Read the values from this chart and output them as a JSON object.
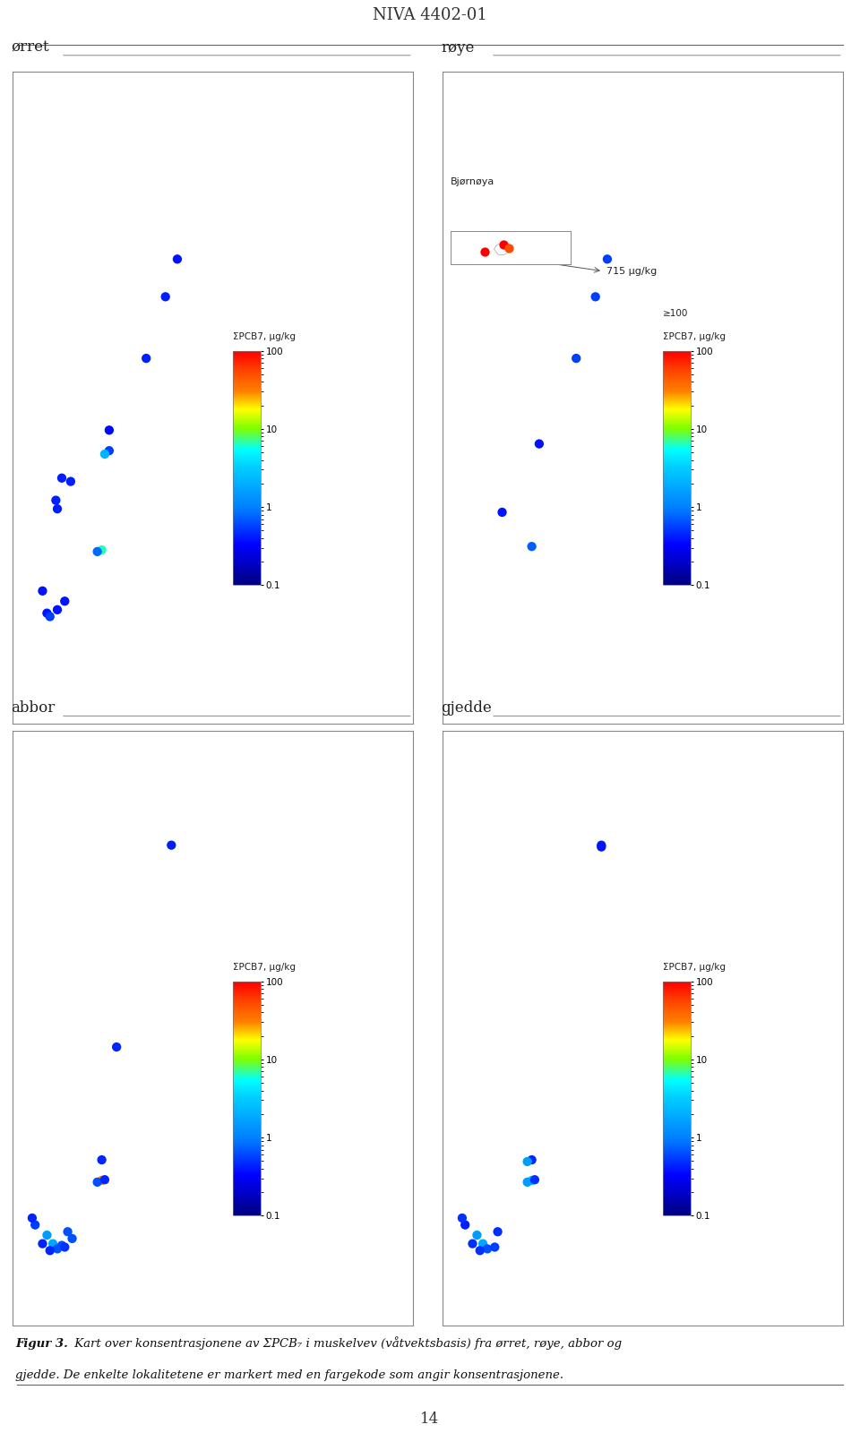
{
  "title": "NIVA 4402-01",
  "page_number": "14",
  "caption_bold": "Figur 3.",
  "caption_text": " Kart over konsentrasjonene av ΣPCB₇ i muskelvev (våtvektsbasis) fra ørret, røye, abbor og",
  "caption_text2": "gjedde. De enkelte lokalitetene er markert med en fargekode som angir konsentrasjonene.",
  "panels": [
    "ørret",
    "røye",
    "abbor",
    "gjedde"
  ],
  "colorbar_label": "ΣPCB7, µg/kg",
  "colorbar_label_roye": "ΣPCB7, µg/kg\n≥100",
  "roye_inset_label": "Bjørnøya",
  "roye_inset_value": "715 µg/kg",
  "norway_lon_range": [
    4.5,
    31.5
  ],
  "norway_lat_range": [
    57.5,
    71.2
  ],
  "bjornoya_lon": 19.0,
  "bjornoya_lat": 74.5,
  "orret_points": [
    {
      "lon": 15.6,
      "lat": 68.4,
      "val": 0.38
    },
    {
      "lon": 14.8,
      "lat": 67.3,
      "val": 0.42
    },
    {
      "lon": 13.5,
      "lat": 65.5,
      "val": 0.42
    },
    {
      "lon": 11.0,
      "lat": 63.4,
      "val": 0.35
    },
    {
      "lon": 11.0,
      "lat": 62.8,
      "val": 0.55
    },
    {
      "lon": 10.7,
      "lat": 62.7,
      "val": 2.2
    },
    {
      "lon": 7.8,
      "lat": 62.0,
      "val": 0.42
    },
    {
      "lon": 8.4,
      "lat": 61.9,
      "val": 0.42
    },
    {
      "lon": 7.4,
      "lat": 61.35,
      "val": 0.42
    },
    {
      "lon": 7.5,
      "lat": 61.1,
      "val": 0.42
    },
    {
      "lon": 6.5,
      "lat": 58.7,
      "val": 0.38
    },
    {
      "lon": 8.0,
      "lat": 58.4,
      "val": 0.38
    },
    {
      "lon": 7.5,
      "lat": 58.15,
      "val": 0.38
    },
    {
      "lon": 6.8,
      "lat": 58.05,
      "val": 0.38
    },
    {
      "lon": 7.0,
      "lat": 57.95,
      "val": 0.55
    },
    {
      "lon": 10.5,
      "lat": 59.9,
      "val": 6.5
    },
    {
      "lon": 10.2,
      "lat": 59.85,
      "val": 0.8
    }
  ],
  "roye_points_main": [
    {
      "lon": 15.6,
      "lat": 68.4,
      "val": 0.55
    },
    {
      "lon": 14.8,
      "lat": 67.3,
      "val": 0.55
    },
    {
      "lon": 13.5,
      "lat": 65.5,
      "val": 0.55
    },
    {
      "lon": 11.0,
      "lat": 63.0,
      "val": 0.38
    },
    {
      "lon": 8.5,
      "lat": 61.0,
      "val": 0.38
    },
    {
      "lon": 10.5,
      "lat": 60.0,
      "val": 0.75
    }
  ],
  "roye_bjornoya_points": [
    {
      "lon": 18.7,
      "lat": 74.37,
      "val": 715.0
    },
    {
      "lon": 19.1,
      "lat": 74.52,
      "val": 715.0
    },
    {
      "lon": 19.2,
      "lat": 74.45,
      "val": 50.0
    }
  ],
  "abbor_points": [
    {
      "lon": 15.2,
      "lat": 69.7,
      "val": 0.42
    },
    {
      "lon": 11.5,
      "lat": 63.8,
      "val": 0.45
    },
    {
      "lon": 10.5,
      "lat": 60.5,
      "val": 0.45
    },
    {
      "lon": 6.0,
      "lat": 58.6,
      "val": 0.55
    },
    {
      "lon": 6.8,
      "lat": 58.3,
      "val": 1.5
    },
    {
      "lon": 7.2,
      "lat": 58.05,
      "val": 1.8
    },
    {
      "lon": 7.5,
      "lat": 57.9,
      "val": 0.65
    },
    {
      "lon": 8.2,
      "lat": 58.4,
      "val": 0.65
    },
    {
      "lon": 7.8,
      "lat": 58.0,
      "val": 0.65
    },
    {
      "lon": 8.5,
      "lat": 58.2,
      "val": 0.65
    },
    {
      "lon": 10.5,
      "lat": 59.9,
      "val": 30.0
    },
    {
      "lon": 10.2,
      "lat": 59.85,
      "val": 0.65
    },
    {
      "lon": 10.7,
      "lat": 59.92,
      "val": 0.45
    },
    {
      "lon": 6.5,
      "lat": 58.05,
      "val": 0.45
    },
    {
      "lon": 7.0,
      "lat": 57.85,
      "val": 0.45
    },
    {
      "lon": 8.0,
      "lat": 57.95,
      "val": 0.5
    },
    {
      "lon": 5.8,
      "lat": 58.8,
      "val": 0.45
    }
  ],
  "gjedde_points": [
    {
      "lon": 15.2,
      "lat": 69.7,
      "val": 0.42
    },
    {
      "lon": 15.2,
      "lat": 69.65,
      "val": 0.38
    },
    {
      "lon": 10.5,
      "lat": 60.5,
      "val": 0.45
    },
    {
      "lon": 10.2,
      "lat": 60.45,
      "val": 1.5
    },
    {
      "lon": 6.0,
      "lat": 58.6,
      "val": 0.42
    },
    {
      "lon": 6.8,
      "lat": 58.3,
      "val": 1.5
    },
    {
      "lon": 7.2,
      "lat": 58.05,
      "val": 1.8
    },
    {
      "lon": 7.5,
      "lat": 57.9,
      "val": 0.65
    },
    {
      "lon": 8.2,
      "lat": 58.4,
      "val": 0.48
    },
    {
      "lon": 10.5,
      "lat": 59.9,
      "val": 3.5
    },
    {
      "lon": 10.2,
      "lat": 59.85,
      "val": 1.5
    },
    {
      "lon": 10.7,
      "lat": 59.92,
      "val": 0.5
    },
    {
      "lon": 6.5,
      "lat": 58.05,
      "val": 0.5
    },
    {
      "lon": 7.0,
      "lat": 57.85,
      "val": 0.5
    },
    {
      "lon": 8.0,
      "lat": 57.95,
      "val": 0.55
    },
    {
      "lon": 5.8,
      "lat": 58.8,
      "val": 0.5
    }
  ],
  "norway_border_color": "#aaaaaa",
  "point_size": 55,
  "background_color": "#ffffff",
  "panel_border_color": "#888888",
  "colorbar_colors": [
    [
      0.0,
      "#00007f"
    ],
    [
      0.17,
      "#0000ff"
    ],
    [
      0.33,
      "#0080ff"
    ],
    [
      0.5,
      "#00ccff"
    ],
    [
      0.58,
      "#00ffff"
    ],
    [
      0.67,
      "#80ff00"
    ],
    [
      0.75,
      "#ffff00"
    ],
    [
      0.83,
      "#ff8000"
    ],
    [
      0.92,
      "#ff4000"
    ],
    [
      1.0,
      "#ff0000"
    ]
  ]
}
